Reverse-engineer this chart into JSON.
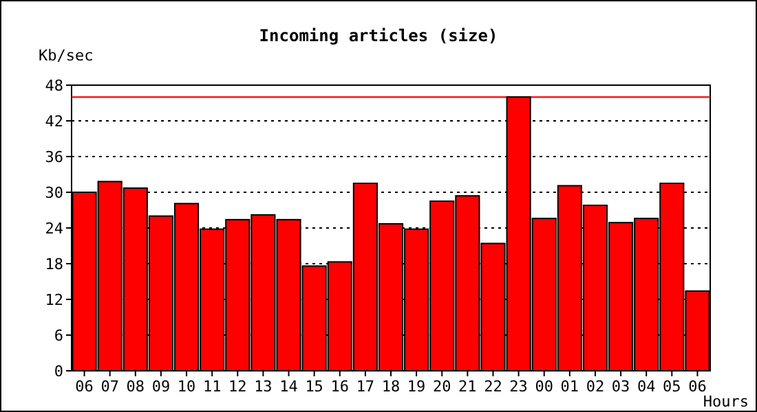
{
  "chart_data": {
    "type": "bar",
    "title": "Incoming articles (size)",
    "ylabel": "Kb/sec",
    "xlabel": "Hours",
    "categories": [
      "06",
      "07",
      "08",
      "09",
      "10",
      "11",
      "12",
      "13",
      "14",
      "15",
      "16",
      "17",
      "18",
      "19",
      "20",
      "21",
      "22",
      "23",
      "00",
      "01",
      "02",
      "03",
      "04",
      "05",
      "06"
    ],
    "values": [
      30,
      31.8,
      30.7,
      26,
      28.1,
      23.8,
      25.4,
      26.2,
      25.4,
      17.6,
      18.3,
      31.5,
      24.7,
      23.8,
      28.5,
      29.4,
      21.4,
      46,
      25.6,
      31.1,
      27.8,
      24.9,
      25.6,
      31.5,
      13.4
    ],
    "color": "#ff0000",
    "ylim": [
      0,
      48
    ],
    "yticks": [
      0,
      6,
      12,
      18,
      24,
      30,
      36,
      42,
      48
    ],
    "grid": "y",
    "ref_lines": [
      {
        "axis": "y",
        "value": 46,
        "color": "#ff0000"
      }
    ]
  }
}
